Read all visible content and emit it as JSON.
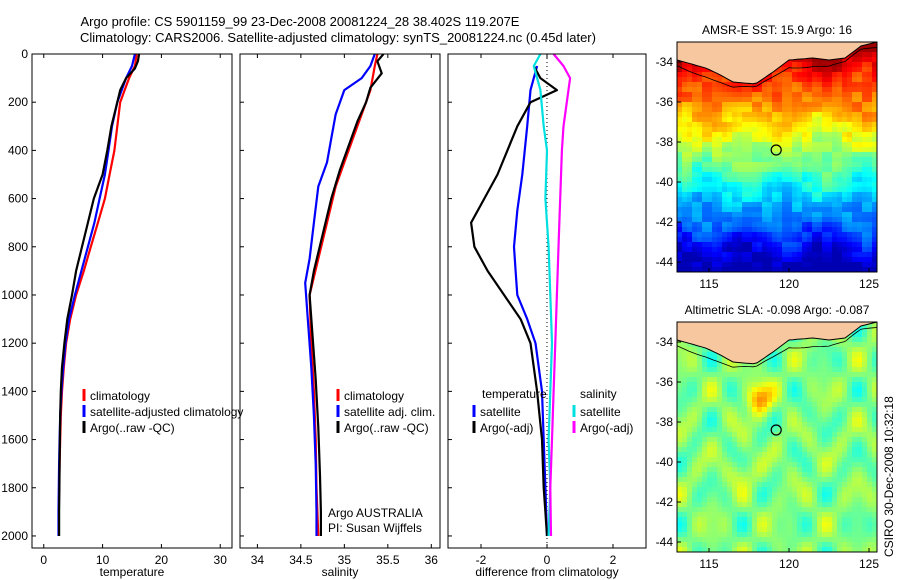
{
  "header": {
    "line1": "Argo profile: CS 5901159_99 23-Dec-2008 20081224_28 38.402S 119.207E",
    "line2": "Climatology: CARS2006. Satellite-adjusted climatology: synTS_20081224.nc (0.45d later)"
  },
  "side_label": "CSIRO 30-Dec-2008 10:32:18",
  "colors": {
    "climatology": "#ff0000",
    "satellite": "#0000ff",
    "argo": "#000000",
    "sat_salinity": "#00e0e0",
    "argo_salinity": "#ff00ff",
    "land": "#f7c7a0"
  },
  "chart_data": [
    {
      "type": "line",
      "id": "temperature",
      "xlabel": "temperature",
      "ylabel": "",
      "xlim": [
        -2,
        32
      ],
      "ylim": [
        2050,
        0
      ],
      "xticks": [
        "0",
        "10",
        "20",
        "30"
      ],
      "yticks": [
        "0",
        "200",
        "400",
        "600",
        "800",
        "1000",
        "1200",
        "1400",
        "1600",
        "1800",
        "2000"
      ],
      "legend": [
        "climatology",
        "satellite-adjusted climatology",
        "Argo(..raw -QC)"
      ],
      "series": [
        {
          "name": "climatology",
          "color": "#ff0000",
          "points": [
            [
              15.8,
              0
            ],
            [
              15.5,
              50
            ],
            [
              14.5,
              100
            ],
            [
              13,
              200
            ],
            [
              12.5,
              300
            ],
            [
              12,
              400
            ],
            [
              11.2,
              500
            ],
            [
              10.4,
              600
            ],
            [
              9.2,
              700
            ],
            [
              8,
              800
            ],
            [
              6.8,
              900
            ],
            [
              5.5,
              1000
            ],
            [
              4.5,
              1100
            ],
            [
              3.8,
              1200
            ],
            [
              3.4,
              1300
            ],
            [
              3.1,
              1400
            ],
            [
              2.9,
              1500
            ],
            [
              2.8,
              1600
            ],
            [
              2.7,
              1700
            ],
            [
              2.6,
              1800
            ]
          ]
        },
        {
          "name": "satellite-adjusted climatology",
          "color": "#0000ff",
          "points": [
            [
              15.5,
              0
            ],
            [
              15,
              50
            ],
            [
              14,
              100
            ],
            [
              12.5,
              200
            ],
            [
              11.6,
              300
            ],
            [
              11,
              400
            ],
            [
              10.4,
              500
            ],
            [
              9.5,
              600
            ],
            [
              8.6,
              700
            ],
            [
              7.5,
              800
            ],
            [
              6.4,
              900
            ],
            [
              5.3,
              1000
            ],
            [
              4.3,
              1100
            ],
            [
              3.7,
              1200
            ],
            [
              3.3,
              1300
            ],
            [
              3,
              1400
            ],
            [
              2.8,
              1500
            ],
            [
              2.7,
              1600
            ],
            [
              2.6,
              1700
            ],
            [
              2.55,
              1800
            ],
            [
              2.5,
              1900
            ],
            [
              2.5,
              2000
            ]
          ]
        },
        {
          "name": "Argo(..raw -QC)",
          "color": "#000000",
          "points": [
            [
              16.2,
              0
            ],
            [
              16,
              30
            ],
            [
              15.5,
              60
            ],
            [
              14,
              100
            ],
            [
              13,
              150
            ],
            [
              12.5,
              200
            ],
            [
              11.5,
              300
            ],
            [
              10.8,
              400
            ],
            [
              10,
              500
            ],
            [
              8.5,
              600
            ],
            [
              7.5,
              700
            ],
            [
              6.5,
              800
            ],
            [
              5.5,
              900
            ],
            [
              4.8,
              1000
            ],
            [
              4,
              1100
            ],
            [
              3.5,
              1200
            ],
            [
              3.1,
              1300
            ],
            [
              2.9,
              1400
            ],
            [
              2.8,
              1500
            ],
            [
              2.75,
              1600
            ],
            [
              2.7,
              1700
            ],
            [
              2.65,
              1800
            ],
            [
              2.6,
              1900
            ],
            [
              2.6,
              2000
            ]
          ]
        }
      ]
    },
    {
      "type": "line",
      "id": "salinity",
      "xlabel": "salinity",
      "ylabel": "",
      "xlim": [
        33.8,
        36.1
      ],
      "ylim": [
        2050,
        0
      ],
      "xticks": [
        "34",
        "34.5",
        "35",
        "35.5",
        "36"
      ],
      "legend": [
        "climatology",
        "satellite adj. clim.",
        "Argo(..raw -QC)"
      ],
      "annotation": [
        "Argo AUSTRALIA",
        "PI: Susan Wijffels"
      ],
      "series": [
        {
          "name": "climatology",
          "color": "#ff0000",
          "points": [
            [
              35.38,
              0
            ],
            [
              35.35,
              50
            ],
            [
              35.3,
              150
            ],
            [
              35.2,
              250
            ],
            [
              35.1,
              350
            ],
            [
              35,
              450
            ],
            [
              34.9,
              550
            ],
            [
              34.8,
              700
            ],
            [
              34.7,
              850
            ],
            [
              34.6,
              1000
            ],
            [
              34.62,
              1200
            ],
            [
              34.65,
              1400
            ],
            [
              34.67,
              1600
            ],
            [
              34.68,
              1800
            ],
            [
              34.7,
              2000
            ]
          ]
        },
        {
          "name": "satellite adj. clim.",
          "color": "#0000ff",
          "points": [
            [
              35.35,
              0
            ],
            [
              35.3,
              50
            ],
            [
              35.2,
              100
            ],
            [
              35,
              150
            ],
            [
              34.9,
              250
            ],
            [
              34.85,
              350
            ],
            [
              34.8,
              450
            ],
            [
              34.7,
              550
            ],
            [
              34.65,
              700
            ],
            [
              34.6,
              850
            ],
            [
              34.55,
              950
            ],
            [
              34.58,
              1100
            ],
            [
              34.62,
              1300
            ],
            [
              34.65,
              1500
            ],
            [
              34.67,
              1700
            ],
            [
              34.68,
              1900
            ],
            [
              34.68,
              2000
            ]
          ]
        },
        {
          "name": "Argo(..raw -QC)",
          "color": "#000000",
          "points": [
            [
              35.45,
              0
            ],
            [
              35.38,
              30
            ],
            [
              35.43,
              80
            ],
            [
              35.3,
              140
            ],
            [
              35.25,
              200
            ],
            [
              35.15,
              280
            ],
            [
              35.05,
              380
            ],
            [
              34.95,
              480
            ],
            [
              34.85,
              600
            ],
            [
              34.75,
              750
            ],
            [
              34.65,
              900
            ],
            [
              34.6,
              1000
            ],
            [
              34.63,
              1150
            ],
            [
              34.67,
              1350
            ],
            [
              34.7,
              1550
            ],
            [
              34.72,
              1750
            ],
            [
              34.73,
              1900
            ],
            [
              34.73,
              2000
            ]
          ]
        }
      ]
    },
    {
      "type": "line",
      "id": "difference",
      "xlabel": "difference from climatology",
      "ylabel": "",
      "xlim": [
        -3,
        3
      ],
      "ylim": [
        2050,
        0
      ],
      "xticks": [
        "-2",
        "0",
        "2"
      ],
      "zero_line": "dotted",
      "legend_groups": [
        {
          "title": "temperature",
          "entries": [
            "satellite",
            "Argo(-adj)"
          ]
        },
        {
          "title": "salinity",
          "entries": [
            "satellite",
            "Argo(-adj)"
          ]
        }
      ],
      "series": [
        {
          "name": "temperature satellite",
          "color": "#0000ff",
          "points": [
            [
              -0.3,
              50
            ],
            [
              -0.5,
              150
            ],
            [
              -0.6,
              300
            ],
            [
              -0.75,
              500
            ],
            [
              -0.9,
              650
            ],
            [
              -1,
              800
            ],
            [
              -0.95,
              900
            ],
            [
              -0.9,
              1000
            ],
            [
              -0.6,
              1100
            ],
            [
              -0.35,
              1200
            ],
            [
              -0.15,
              1400
            ],
            [
              -0.1,
              1600
            ],
            [
              -0.05,
              1800
            ],
            [
              0,
              2000
            ]
          ]
        },
        {
          "name": "temperature Argo(-adj)",
          "color": "#000000",
          "points": [
            [
              -0.4,
              50
            ],
            [
              -0.2,
              100
            ],
            [
              0.3,
              150
            ],
            [
              -0.5,
              200
            ],
            [
              -0.9,
              300
            ],
            [
              -1.2,
              400
            ],
            [
              -1.5,
              500
            ],
            [
              -1.9,
              600
            ],
            [
              -2.3,
              700
            ],
            [
              -2.2,
              800
            ],
            [
              -1.8,
              900
            ],
            [
              -1.3,
              1000
            ],
            [
              -0.8,
              1100
            ],
            [
              -0.5,
              1200
            ],
            [
              -0.3,
              1400
            ],
            [
              -0.15,
              1600
            ],
            [
              -0.1,
              1800
            ],
            [
              -0.05,
              1900
            ],
            [
              0,
              2000
            ]
          ]
        },
        {
          "name": "salinity satellite",
          "color": "#00e0e0",
          "points": [
            [
              -0.2,
              0
            ],
            [
              -0.4,
              50
            ],
            [
              -0.2,
              150
            ],
            [
              -0.1,
              300
            ],
            [
              0,
              400
            ],
            [
              -0.05,
              600
            ],
            [
              0.05,
              800
            ],
            [
              0.1,
              1000
            ],
            [
              0.15,
              1200
            ],
            [
              0.1,
              1400
            ],
            [
              0.05,
              1600
            ],
            [
              0.1,
              1800
            ],
            [
              0.05,
              2000
            ]
          ]
        },
        {
          "name": "salinity Argo(-adj)",
          "color": "#ff00ff",
          "points": [
            [
              0.2,
              0
            ],
            [
              0.5,
              50
            ],
            [
              0.7,
              100
            ],
            [
              0.6,
              200
            ],
            [
              0.5,
              300
            ],
            [
              0.45,
              400
            ],
            [
              0.4,
              600
            ],
            [
              0.35,
              800
            ],
            [
              0.3,
              1000
            ],
            [
              0.25,
              1200
            ],
            [
              0.2,
              1400
            ],
            [
              0.15,
              1600
            ],
            [
              0.1,
              1800
            ],
            [
              0.12,
              2000
            ]
          ]
        }
      ]
    },
    {
      "type": "heatmap",
      "id": "sst_map",
      "title": "AMSR-E SST: 15.9 Argo: 16",
      "xlim": [
        113,
        125.5
      ],
      "ylim": [
        -44.5,
        -33
      ],
      "xticks": [
        "115",
        "120",
        "125"
      ],
      "yticks": [
        "-34",
        "-36",
        "-38",
        "-40",
        "-42",
        "-44"
      ],
      "profile_marker": [
        119.2,
        -38.4
      ],
      "colormap": "jet"
    },
    {
      "type": "heatmap",
      "id": "sla_map",
      "title": "Altimetric SLA: -0.098 Argo: -0.087",
      "xlim": [
        113,
        125.5
      ],
      "ylim": [
        -44.5,
        -33
      ],
      "xticks": [
        "115",
        "120",
        "125"
      ],
      "yticks": [
        "-34",
        "-36",
        "-38",
        "-40",
        "-42",
        "-44"
      ],
      "profile_marker": [
        119.2,
        -38.4
      ],
      "colormap": "jet"
    }
  ]
}
